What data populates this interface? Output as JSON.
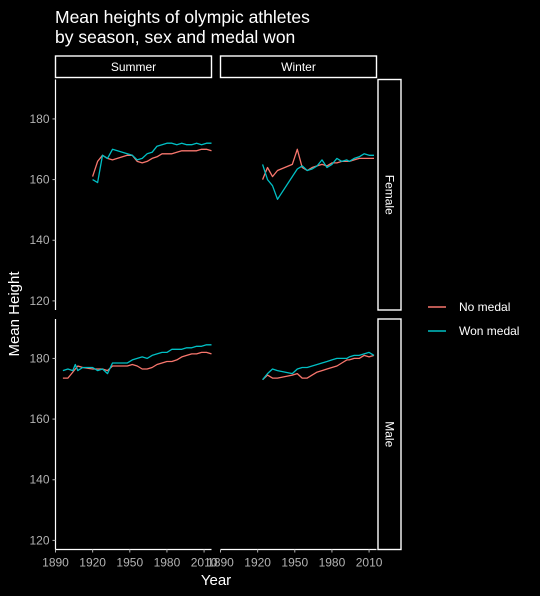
{
  "chart_data": {
    "type": "line",
    "title": "Mean heights of olympic athletes\nby season, sex and medal won",
    "xlabel": "Year",
    "ylabel": "Mean Height",
    "xlim": [
      1890,
      2016
    ],
    "ylim": [
      117,
      193
    ],
    "xticks": [
      1890,
      1920,
      1950,
      1980,
      2010
    ],
    "yticks": [
      120,
      140,
      160,
      180
    ],
    "grid": false,
    "legend_position": "right",
    "columns": [
      "Summer",
      "Winter"
    ],
    "rows": [
      "Female",
      "Male"
    ],
    "series_legend": [
      {
        "name": "No medal",
        "color": "#F8766D"
      },
      {
        "name": "Won medal",
        "color": "#00BFC4"
      }
    ],
    "panels": [
      {
        "season": "Summer",
        "sex": "Female",
        "series": [
          {
            "name": "No medal",
            "x": [
              1920,
              1924,
              1928,
              1932,
              1936,
              1948,
              1952,
              1956,
              1960,
              1964,
              1968,
              1972,
              1976,
              1980,
              1984,
              1988,
              1992,
              1996,
              2000,
              2004,
              2008,
              2012,
              2016
            ],
            "y": [
              161,
              166,
              168,
              167,
              166.5,
              168,
              168,
              166,
              165.5,
              166,
              167,
              167.5,
              168.5,
              168.5,
              168.5,
              169,
              169.5,
              169.5,
              169.5,
              169.5,
              170,
              170,
              169.5
            ]
          },
          {
            "name": "Won medal",
            "x": [
              1920,
              1924,
              1928,
              1932,
              1936,
              1948,
              1952,
              1956,
              1960,
              1964,
              1968,
              1972,
              1976,
              1980,
              1984,
              1988,
              1992,
              1996,
              2000,
              2004,
              2008,
              2012,
              2016
            ],
            "y": [
              160,
              159,
              168,
              167,
              170,
              168.5,
              168,
              166.5,
              167,
              168.5,
              169,
              171,
              171.5,
              172,
              172,
              171.5,
              172,
              171.5,
              171.5,
              172,
              171.5,
              172,
              172
            ]
          }
        ]
      },
      {
        "season": "Winter",
        "sex": "Female",
        "series": [
          {
            "name": "No medal",
            "x": [
              1924,
              1928,
              1932,
              1936,
              1948,
              1952,
              1956,
              1960,
              1964,
              1968,
              1972,
              1976,
              1980,
              1984,
              1988,
              1992,
              1994,
              1998,
              2002,
              2006,
              2010,
              2014
            ],
            "y": [
              160,
              164,
              161,
              163,
              165,
              170,
              164,
              163,
              164,
              164.5,
              165,
              164.5,
              165.5,
              165.5,
              166,
              166,
              166,
              166.5,
              167,
              167,
              167,
              167
            ]
          },
          {
            "name": "Won medal",
            "x": [
              1924,
              1928,
              1932,
              1936,
              1948,
              1952,
              1956,
              1960,
              1964,
              1968,
              1972,
              1976,
              1980,
              1984,
              1988,
              1992,
              1994,
              1998,
              2002,
              2006,
              2010,
              2014
            ],
            "y": [
              165,
              160,
              158,
              153.5,
              161,
              163.5,
              164.5,
              163,
              163.5,
              164.5,
              166.5,
              164,
              165,
              167,
              166,
              166.5,
              166,
              167,
              167.5,
              168.5,
              168,
              168
            ]
          }
        ]
      },
      {
        "season": "Summer",
        "sex": "Male",
        "series": [
          {
            "name": "No medal",
            "x": [
              1896,
              1900,
              1904,
              1906,
              1908,
              1912,
              1920,
              1924,
              1928,
              1932,
              1936,
              1948,
              1952,
              1956,
              1960,
              1964,
              1968,
              1972,
              1976,
              1980,
              1984,
              1988,
              1992,
              1996,
              2000,
              2004,
              2008,
              2012,
              2016
            ],
            "y": [
              173.5,
              173.5,
              175.5,
              176.5,
              177.5,
              177,
              176.5,
              176.5,
              176.5,
              176,
              177.5,
              177.5,
              178,
              177.5,
              176.5,
              176.5,
              177,
              178,
              178.5,
              179,
              179,
              179.5,
              180.5,
              181,
              181.5,
              181.5,
              182,
              182,
              181.5
            ]
          },
          {
            "name": "Won medal",
            "x": [
              1896,
              1900,
              1904,
              1906,
              1908,
              1912,
              1920,
              1924,
              1928,
              1932,
              1936,
              1948,
              1952,
              1956,
              1960,
              1964,
              1968,
              1972,
              1976,
              1980,
              1984,
              1988,
              1992,
              1996,
              2000,
              2004,
              2008,
              2012,
              2016
            ],
            "y": [
              176,
              176.5,
              176,
              178,
              176,
              177,
              177,
              176,
              176.5,
              175,
              178.5,
              178.5,
              179.5,
              180,
              180.5,
              180,
              181,
              181.5,
              182,
              182,
              183,
              183,
              183,
              183.5,
              183.5,
              184,
              184,
              184.5,
              184.5
            ]
          }
        ]
      },
      {
        "season": "Winter",
        "sex": "Male",
        "series": [
          {
            "name": "No medal",
            "x": [
              1924,
              1928,
              1932,
              1936,
              1948,
              1952,
              1956,
              1960,
              1964,
              1968,
              1972,
              1976,
              1980,
              1984,
              1988,
              1992,
              1994,
              1998,
              2002,
              2006,
              2010,
              2014
            ],
            "y": [
              173,
              174.5,
              173.5,
              173.5,
              174.5,
              175,
              173.5,
              173.5,
              174.5,
              175.5,
              176,
              176.5,
              177,
              177.5,
              178.5,
              179.5,
              179.5,
              180,
              180,
              181,
              180.5,
              181
            ]
          },
          {
            "name": "Won medal",
            "x": [
              1924,
              1928,
              1932,
              1936,
              1948,
              1952,
              1956,
              1960,
              1964,
              1968,
              1972,
              1976,
              1980,
              1984,
              1988,
              1992,
              1994,
              1998,
              2002,
              2006,
              2010,
              2014
            ],
            "y": [
              173,
              175,
              176.5,
              176,
              175,
              176.5,
              177,
              177,
              177.5,
              178,
              178.5,
              179,
              179.5,
              180,
              180,
              180,
              180.5,
              181,
              181,
              181.5,
              182,
              181
            ]
          }
        ]
      }
    ]
  }
}
